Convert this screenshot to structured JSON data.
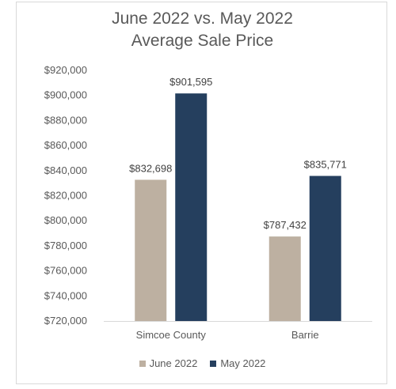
{
  "chart_data": {
    "type": "bar",
    "title_line1": "June 2022 vs. May 2022",
    "title_line2": "Average Sale Price",
    "categories": [
      "Simcoe County",
      "Barrie"
    ],
    "series": [
      {
        "name": "June 2022",
        "color": "#bdb0a1",
        "values": [
          832698,
          787432
        ],
        "labels": [
          "$832,698",
          "$787,432"
        ]
      },
      {
        "name": "May 2022",
        "color": "#253f5e",
        "values": [
          901595,
          835771
        ],
        "labels": [
          "$901,595",
          "$835,771"
        ]
      }
    ],
    "ylim": [
      720000,
      920000
    ],
    "yticks": [
      720000,
      740000,
      760000,
      780000,
      800000,
      820000,
      840000,
      860000,
      880000,
      900000,
      920000
    ],
    "ytick_labels": [
      "$720,000",
      "$740,000",
      "$760,000",
      "$780,000",
      "$800,000",
      "$820,000",
      "$840,000",
      "$860,000",
      "$880,000",
      "$900,000",
      "$920,000"
    ],
    "grid": false,
    "legend_position": "bottom"
  }
}
